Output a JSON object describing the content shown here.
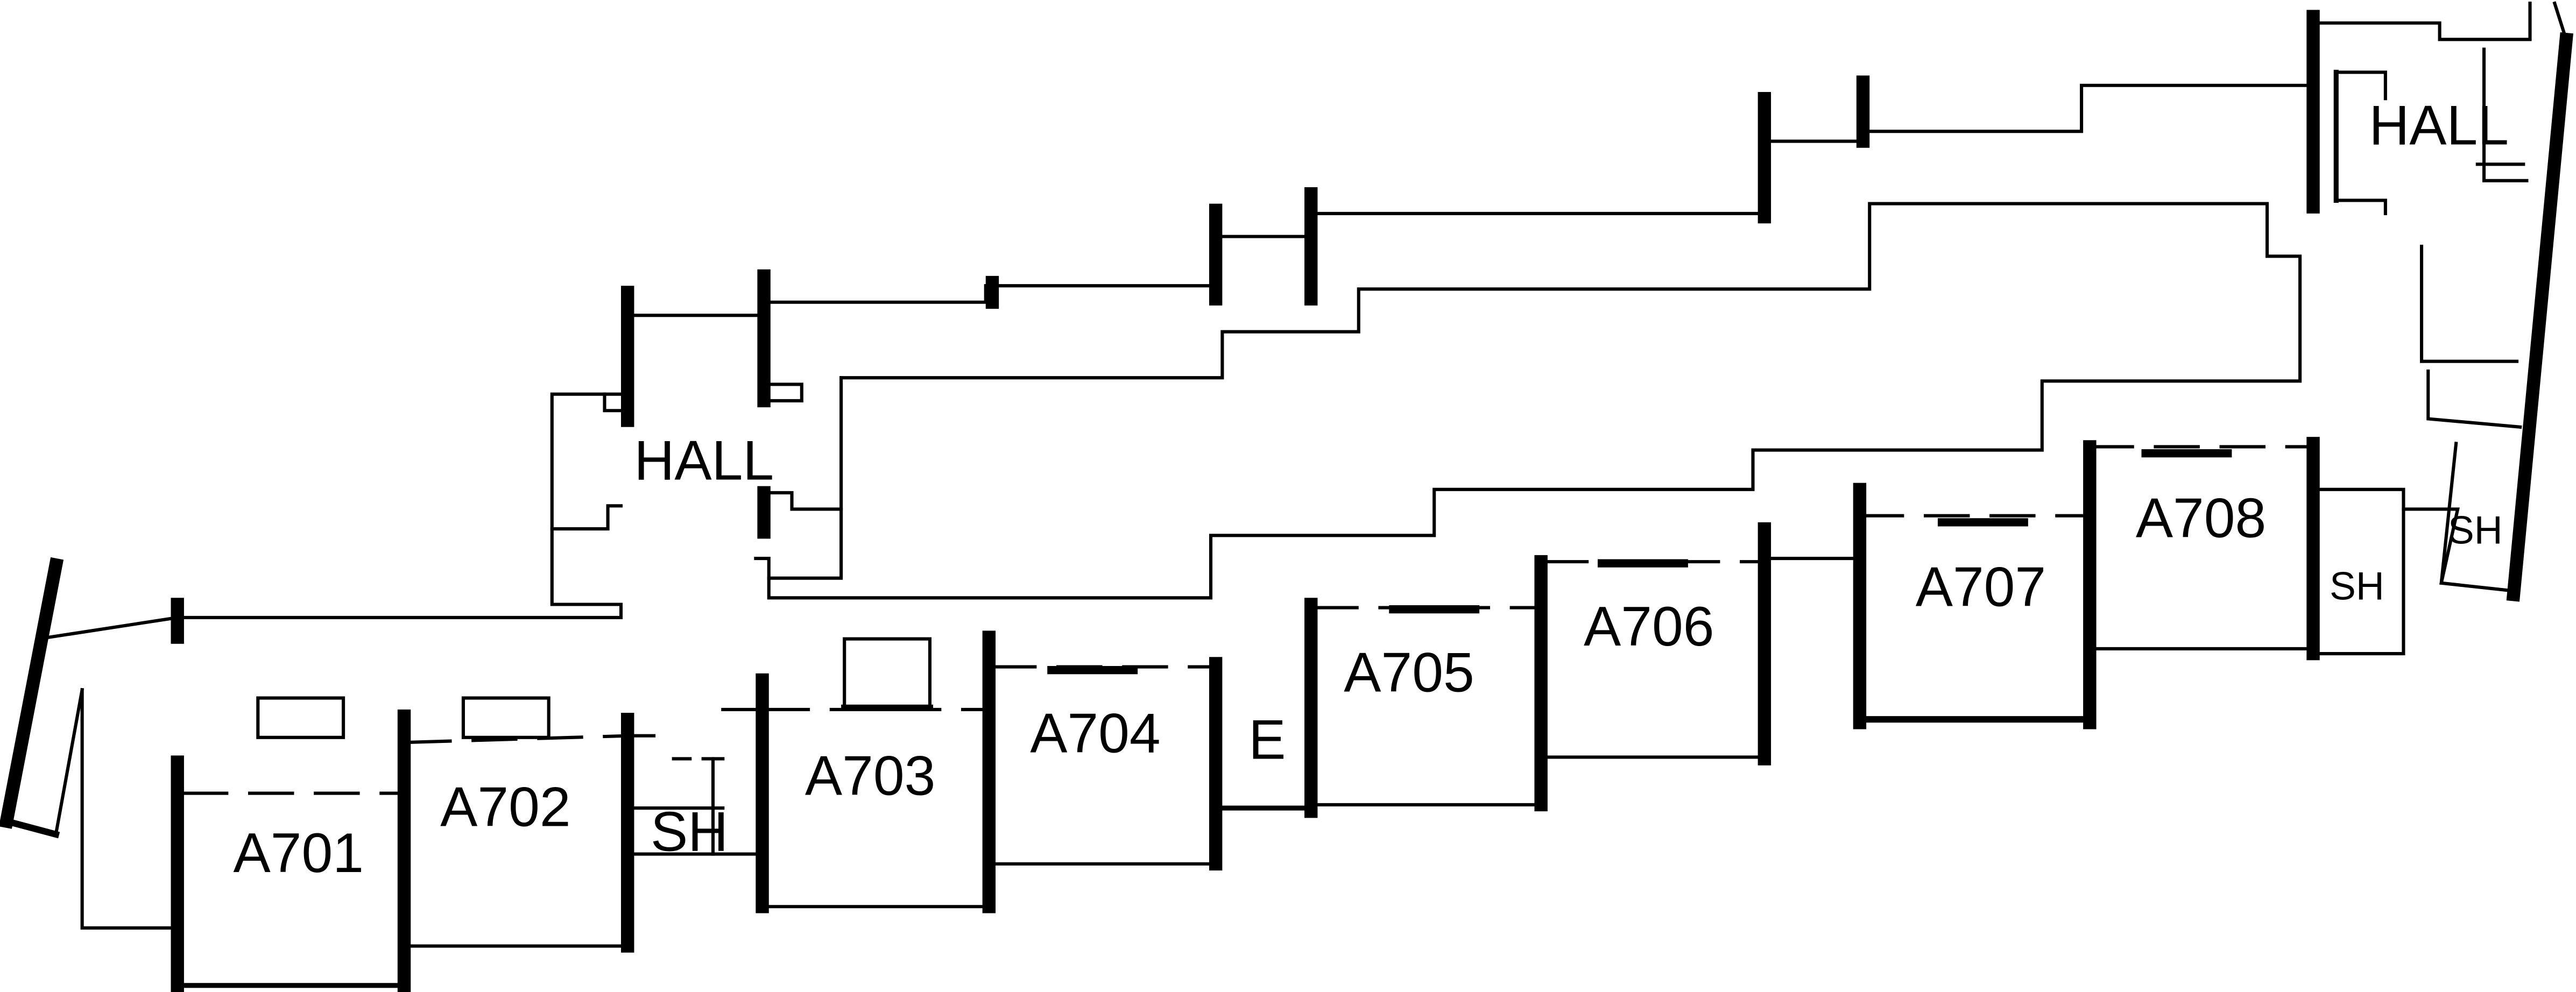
{
  "floor_plan": {
    "labels": {
      "hall_west": "HALL",
      "hall_east": "HALL",
      "a701": "A701",
      "a702": "A702",
      "sh_1": "SH",
      "a703": "A703",
      "a704": "A704",
      "elevator": "E",
      "a705": "A705",
      "a706": "A706",
      "a707": "A707",
      "a708": "A708",
      "sh_2": "SH",
      "sh_3": "SH"
    }
  },
  "colors": {
    "ink": "#000000",
    "paper": "#ffffff"
  }
}
